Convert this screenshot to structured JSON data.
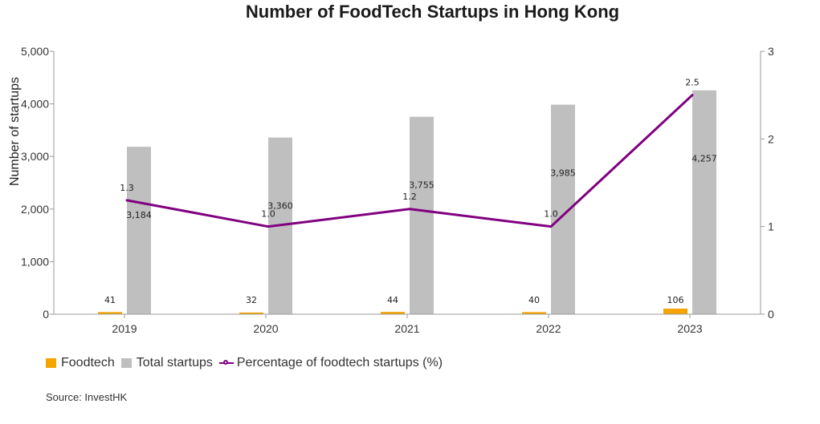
{
  "colors": {
    "foodtech": "#F5A400",
    "total": "#BFBFBF",
    "percentage": "#800080",
    "axis": "#999999"
  },
  "chart_data": {
    "type": "bar",
    "title": "Number of FoodTech Startups in Hong Kong",
    "ylabel": "Number of startups",
    "categories": [
      "2019",
      "2020",
      "2021",
      "2022",
      "2023"
    ],
    "ylim": [
      0,
      5000
    ],
    "y_ticks": [
      "0",
      "1,000",
      "2,000",
      "3,000",
      "4,000",
      "5,000"
    ],
    "y2lim": [
      0,
      3
    ],
    "y2_ticks": [
      "0",
      "1",
      "2",
      "3"
    ],
    "series": [
      {
        "name": "Foodtech",
        "type": "bar",
        "axis": "left",
        "values": [
          41,
          32,
          44,
          40,
          106
        ],
        "labels": [
          "41",
          "32",
          "44",
          "40",
          "106"
        ]
      },
      {
        "name": "Total startups",
        "type": "bar",
        "axis": "left",
        "values": [
          3184,
          3360,
          3755,
          3985,
          4257
        ],
        "labels": [
          "3,184",
          "3,360",
          "3,755",
          "3,985",
          "4,257"
        ]
      },
      {
        "name": "Percentage of foodtech startups (%)",
        "type": "line",
        "axis": "right",
        "values": [
          1.3,
          1.0,
          1.2,
          1.0,
          2.5
        ],
        "labels": [
          "1.3",
          "1.0",
          "1.2",
          "1.0",
          "2.5"
        ]
      }
    ],
    "grid": false,
    "legend": "bottom-left"
  },
  "source": "Source: InvestHK"
}
